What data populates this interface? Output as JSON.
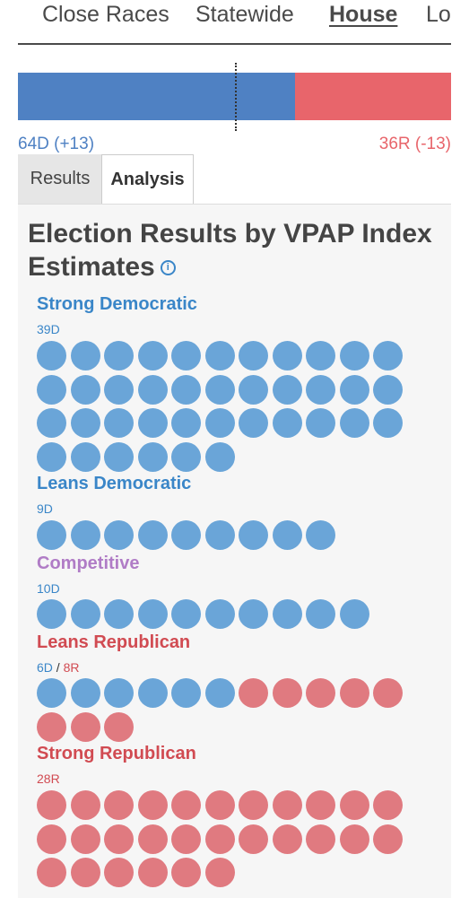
{
  "nav": {
    "tabs": [
      {
        "label": "Close Races",
        "active": false
      },
      {
        "label": "Statewide",
        "active": false
      },
      {
        "label": "House",
        "active": true
      },
      {
        "label": "Lo",
        "active": false
      }
    ]
  },
  "seat_bar": {
    "dem_seats": 64,
    "rep_seats": 36,
    "dem_label": "64D (+13)",
    "rep_label": "36R (-13)",
    "dem_color": "#4f81c3",
    "rep_color": "#e8656b"
  },
  "subtabs": {
    "results_label": "Results",
    "analysis_label": "Analysis",
    "active": "Analysis"
  },
  "panel": {
    "title": "Election Results by VPAP Index Estimates",
    "info_icon": "info-icon"
  },
  "colors": {
    "dem_dot": "#6aa5d8",
    "rep_dot": "#e07a80"
  },
  "categories": [
    {
      "key": "strong-democratic",
      "title": "Strong Democratic",
      "title_color": "#3a86c8",
      "dem": 39,
      "rep": 0,
      "dem_label": "39D",
      "rep_label": ""
    },
    {
      "key": "leans-democratic",
      "title": "Leans Democratic",
      "title_color": "#3a86c8",
      "dem": 9,
      "rep": 0,
      "dem_label": "9D",
      "rep_label": ""
    },
    {
      "key": "competitive",
      "title": "Competitive",
      "title_color": "#b07cc6",
      "dem": 10,
      "rep": 0,
      "dem_label": "10D",
      "rep_label": ""
    },
    {
      "key": "leans-republican",
      "title": "Leans Republican",
      "title_color": "#d14b52",
      "dem": 6,
      "rep": 8,
      "dem_label": "6D",
      "rep_label": "8R"
    },
    {
      "key": "strong-republican",
      "title": "Strong Republican",
      "title_color": "#d14b52",
      "dem": 0,
      "rep": 28,
      "dem_label": "",
      "rep_label": "28R"
    }
  ]
}
